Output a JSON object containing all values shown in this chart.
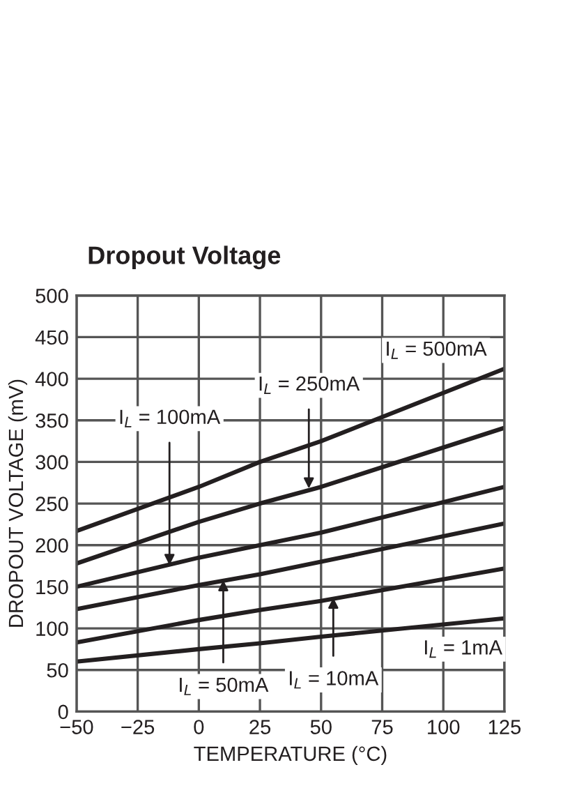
{
  "chart_data": {
    "type": "line",
    "title": "Dropout Voltage",
    "xlabel": "TEMPERATURE (°C)",
    "ylabel": "DROPOUT VOLTAGE (mV)",
    "x": [
      -50,
      0,
      25,
      50,
      125
    ],
    "series": [
      {
        "color": "#231f20",
        "values": [
          217,
          270,
          300,
          325,
          412
        ]
      },
      {
        "color": "#231f20",
        "values": [
          178,
          228,
          250,
          270,
          341
        ]
      },
      {
        "color": "#231f20",
        "values": [
          150,
          185,
          200,
          215,
          270
        ]
      },
      {
        "color": "#231f20",
        "values": [
          123,
          152,
          165,
          180,
          226
        ]
      },
      {
        "color": "#231f20",
        "values": [
          83,
          110,
          122,
          133,
          172
        ]
      },
      {
        "color": "#231f20",
        "values": [
          60,
          75,
          82,
          90,
          112
        ]
      }
    ],
    "annotations": [
      {
        "text": "I$_{L}$ = 500mA",
        "x": 125,
        "y": 412
      },
      {
        "text": "I$_{L}$ = 250mA",
        "x": 45,
        "y": 268
      },
      {
        "text": "I$_{L}$ = 100mA",
        "x": -12,
        "y": 176
      },
      {
        "text": "I$_{L}$ = 50mA",
        "x": 10,
        "y": 158
      },
      {
        "text": "I$_{L}$ = 10mA",
        "x": 55,
        "y": 137
      },
      {
        "text": "I$_{L}$ = 1mA",
        "x": 110,
        "y": 107
      }
    ],
    "xlim": [
      -50,
      125
    ],
    "ylim": [
      0,
      500
    ],
    "xticks": [
      {
        "value": -50,
        "label": "−50"
      },
      {
        "value": -25,
        "label": "−25"
      },
      0,
      25,
      50,
      75,
      100,
      125
    ],
    "yticks": [
      0,
      50,
      100,
      150,
      200,
      250,
      300,
      350,
      400,
      450,
      500
    ],
    "grid": true,
    "legend": false,
    "marker": "none",
    "line_style": "solid"
  }
}
